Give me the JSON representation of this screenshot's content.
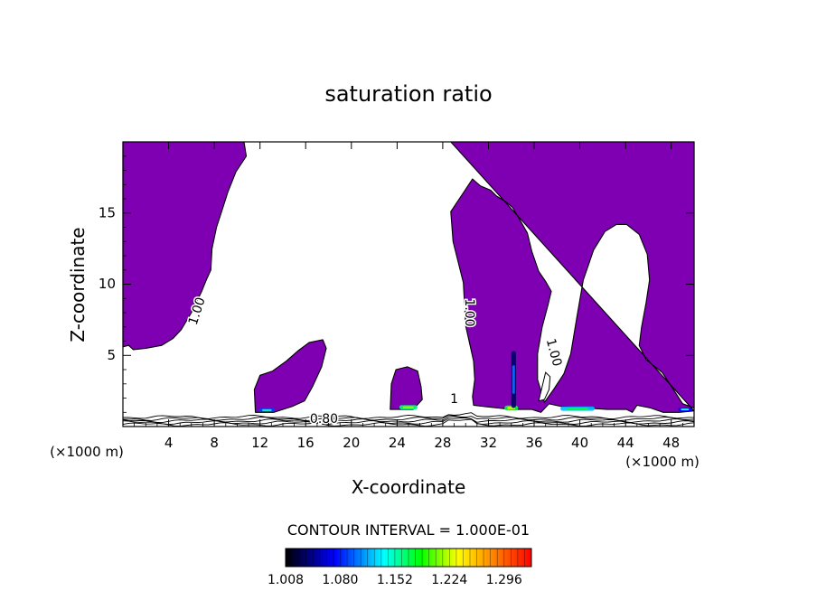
{
  "chart_data": {
    "type": "contour",
    "title": "saturation ratio",
    "xlabel": "X-coordinate",
    "ylabel": "Z-coordinate",
    "x_unit_left": "(×1000 m)",
    "x_unit_right": "(×1000 m)",
    "xlim": [
      0,
      50
    ],
    "ylim": [
      0,
      20
    ],
    "x_ticks": [
      4,
      8,
      12,
      16,
      20,
      24,
      28,
      32,
      36,
      40,
      44,
      48
    ],
    "y_ticks": [
      5,
      10,
      15
    ],
    "fill_color": "#7f00b2",
    "contour_labels": [
      {
        "text": "1.00",
        "x": 6.5,
        "y": 8.1,
        "rotate": -72
      },
      {
        "text": "1.00",
        "x": 30.3,
        "y": 8.0,
        "rotate": 90
      },
      {
        "text": "1.00",
        "x": 37.7,
        "y": 5.2,
        "rotate": 75
      },
      {
        "text": "0.80",
        "x": 17.6,
        "y": 0.5,
        "rotate": 0
      },
      {
        "text": "1",
        "x": 29.0,
        "y": 1.9,
        "rotate": 0
      }
    ],
    "contour_interval_text": "CONTOUR INTERVAL = 1.000E-01",
    "colorbar": {
      "min": 1.008,
      "max": 1.332,
      "labels": [
        "1.008",
        "1.080",
        "1.152",
        "1.224",
        "1.296"
      ],
      "stops": [
        "#000000",
        "#0000ff",
        "#00ffff",
        "#00ff00",
        "#ffff00",
        "#ff0000"
      ]
    },
    "regions": [
      {
        "name": "left-cloud",
        "points": [
          [
            0,
            20
          ],
          [
            10.6,
            20
          ],
          [
            10.8,
            19
          ],
          [
            9.9,
            17.9
          ],
          [
            9.2,
            16.5
          ],
          [
            8.6,
            15
          ],
          [
            8.2,
            14
          ],
          [
            7.8,
            12.5
          ],
          [
            7.7,
            11
          ],
          [
            7.3,
            10.3
          ],
          [
            6.9,
            9.5
          ],
          [
            6.0,
            8
          ],
          [
            5.1,
            6.8
          ],
          [
            4.4,
            6.2
          ],
          [
            3.4,
            5.7
          ],
          [
            2.0,
            5.5
          ],
          [
            0.9,
            5.4
          ],
          [
            0.5,
            5.7
          ],
          [
            0,
            5.6
          ]
        ]
      },
      {
        "name": "mid-cell-a",
        "points": [
          [
            11.6,
            1.0
          ],
          [
            11.5,
            2.6
          ],
          [
            12.0,
            3.6
          ],
          [
            13.1,
            3.9
          ],
          [
            14.3,
            4.6
          ],
          [
            15.3,
            5.3
          ],
          [
            16.3,
            5.9
          ],
          [
            17.5,
            6.1
          ],
          [
            17.8,
            5.5
          ],
          [
            17.4,
            4.2
          ],
          [
            16.6,
            2.8
          ],
          [
            15.9,
            1.8
          ],
          [
            14.8,
            1.4
          ],
          [
            13.2,
            1.0
          ]
        ]
      },
      {
        "name": "mid-cell-b",
        "points": [
          [
            23.4,
            1.2
          ],
          [
            23.5,
            3.0
          ],
          [
            23.9,
            4.0
          ],
          [
            24.9,
            4.2
          ],
          [
            25.8,
            3.9
          ],
          [
            26.1,
            2.8
          ],
          [
            26.2,
            1.9
          ],
          [
            25.4,
            1.2
          ]
        ]
      },
      {
        "name": "right-cloud",
        "points": [
          [
            28.7,
            20
          ],
          [
            50,
            20
          ],
          [
            50,
            1.3
          ],
          [
            49.0,
            1.6
          ],
          [
            48.2,
            2.6
          ],
          [
            47.2,
            3.8
          ],
          [
            45.8,
            4.7
          ],
          [
            45.2,
            5.7
          ],
          [
            45.4,
            7.0
          ],
          [
            45.8,
            8.7
          ],
          [
            46.1,
            10.3
          ],
          [
            45.9,
            12.1
          ],
          [
            45.2,
            13.5
          ],
          [
            44.1,
            14.2
          ],
          [
            43.2,
            14.2
          ],
          [
            42.2,
            13.7
          ],
          [
            41.2,
            12.4
          ],
          [
            40.3,
            10.3
          ],
          [
            39.7,
            7.5
          ],
          [
            39.2,
            5.1
          ],
          [
            38.6,
            3.7
          ],
          [
            37.7,
            2.6
          ],
          [
            36.9,
            1.7
          ],
          [
            36.3,
            3.3
          ],
          [
            36.3,
            5.1
          ],
          [
            36.7,
            7.0
          ],
          [
            37.2,
            8.5
          ],
          [
            37.5,
            9.5
          ],
          [
            37.0,
            10.2
          ],
          [
            36.4,
            10.9
          ],
          [
            35.8,
            12.3
          ],
          [
            35.4,
            13.6
          ],
          [
            34.7,
            14.6
          ],
          [
            34.1,
            15.4
          ],
          [
            33.5,
            15.8
          ],
          [
            32.7,
            16.2
          ],
          [
            32.2,
            16.6
          ],
          [
            31.3,
            16.9
          ],
          [
            30.6,
            17.4
          ],
          [
            29.7,
            16.3
          ],
          [
            28.7,
            15.1
          ],
          [
            28.9,
            13.0
          ],
          [
            29.8,
            10.1
          ],
          [
            30.0,
            7.1
          ],
          [
            30.7,
            4.6
          ],
          [
            30.8,
            3.3
          ],
          [
            30.6,
            2.1
          ],
          [
            30.7,
            1.5
          ],
          [
            31.7,
            1.4
          ],
          [
            34.0,
            1.2
          ],
          [
            35.8,
            1.2
          ],
          [
            36.6,
            1.0
          ],
          [
            37.3,
            1.6
          ],
          [
            38.4,
            1.4
          ],
          [
            40.5,
            1.3
          ],
          [
            42.4,
            1.2
          ],
          [
            44.1,
            1.2
          ],
          [
            44.6,
            1.0
          ],
          [
            45.0,
            1.5
          ],
          [
            46.2,
            1.3
          ],
          [
            47.3,
            1.0
          ],
          [
            48.7,
            1.0
          ],
          [
            50,
            1.1
          ]
        ]
      }
    ],
    "holes": [
      {
        "points": [
          [
            36.4,
            1.8
          ],
          [
            37.0,
            3.8
          ],
          [
            37.4,
            3.5
          ],
          [
            37.3,
            2.6
          ],
          [
            36.9,
            1.9
          ]
        ]
      }
    ],
    "hotspots": [
      {
        "x": 34.0,
        "y": 1.3,
        "w": 1.2,
        "h": 0.35,
        "level": 0.55
      },
      {
        "x": 39.8,
        "y": 1.25,
        "w": 3.0,
        "h": 0.3,
        "level": 0.35
      },
      {
        "x": 25.0,
        "y": 1.35,
        "w": 1.6,
        "h": 0.3,
        "level": 0.5
      },
      {
        "x": 12.6,
        "y": 1.15,
        "w": 1.4,
        "h": 0.25,
        "level": 0.25
      },
      {
        "x": 49.2,
        "y": 1.2,
        "w": 1.2,
        "h": 0.25,
        "level": 0.2
      },
      {
        "x": 34.2,
        "y": 3.3,
        "w": 0.4,
        "h": 4.0,
        "level": 0.08
      }
    ],
    "boundary_contours": 5
  }
}
